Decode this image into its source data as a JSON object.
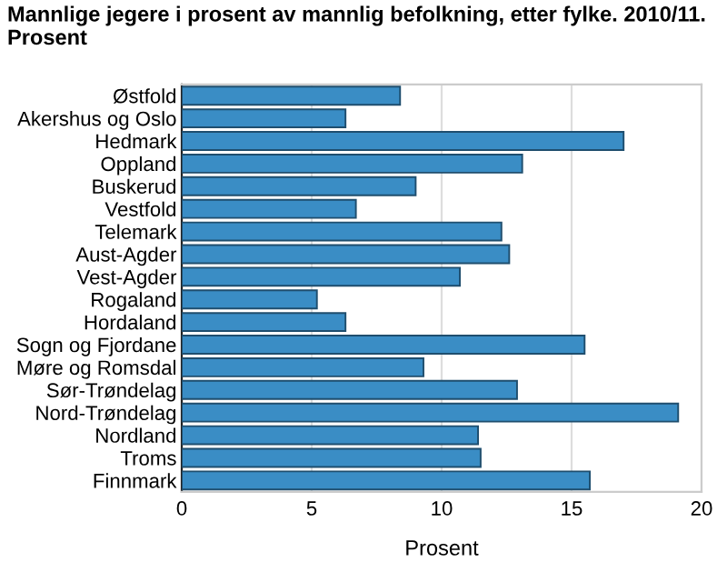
{
  "chart_data": {
    "type": "bar",
    "orientation": "horizontal",
    "title": "Mannlige jegere i prosent av mannlig befolkning, etter fylke. 2010/11. Prosent",
    "xlabel": "Prosent",
    "categories": [
      "Østfold",
      "Akershus og Oslo",
      "Hedmark",
      "Oppland",
      "Buskerud",
      "Vestfold",
      "Telemark",
      "Aust-Agder",
      "Vest-Agder",
      "Rogaland",
      "Hordaland",
      "Sogn og Fjordane",
      "Møre og Romsdal",
      "Sør-Trøndelag",
      "Nord-Trøndelag",
      "Nordland",
      "Troms",
      "Finnmark"
    ],
    "values": [
      8.4,
      6.3,
      17.0,
      13.1,
      9.0,
      6.7,
      12.3,
      12.6,
      10.7,
      5.2,
      6.3,
      15.5,
      9.3,
      12.9,
      19.1,
      11.4,
      11.5,
      15.7
    ],
    "color": "#3a8dc5",
    "xlim": [
      0,
      20
    ],
    "xticks": [
      0,
      5,
      10,
      15,
      20
    ],
    "grid": "x"
  }
}
